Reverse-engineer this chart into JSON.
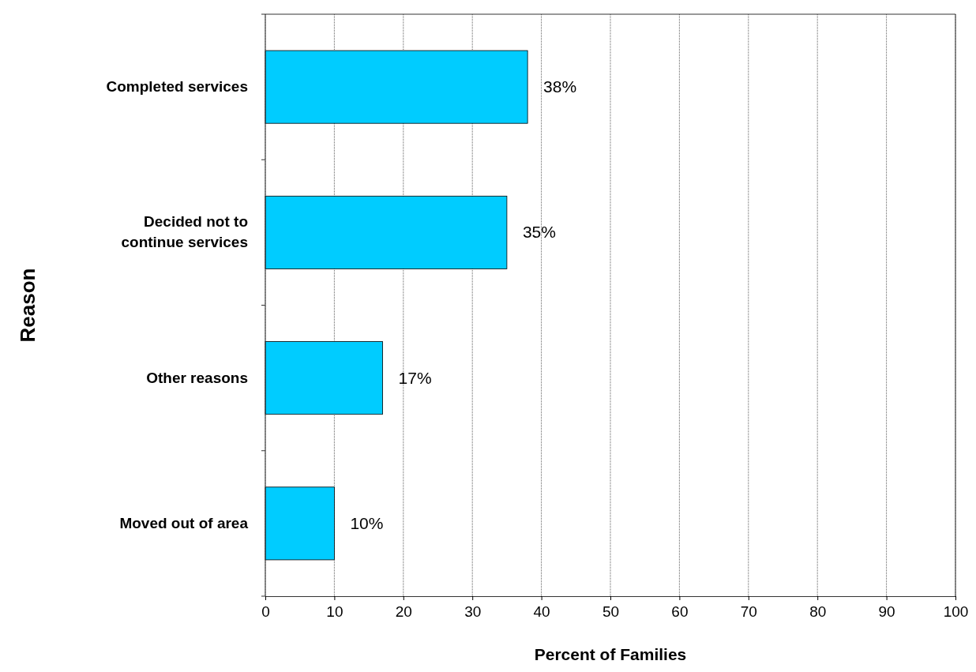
{
  "chart_data": {
    "type": "bar",
    "orientation": "horizontal",
    "xlabel": "Percent of Families",
    "ylabel": "Reason",
    "categories": [
      "Completed  services",
      "Decided not to\ncontinue services",
      "Other  reasons",
      "Moved out of area"
    ],
    "values": [
      38,
      35,
      17,
      10
    ],
    "value_labels": [
      "38%",
      "35%",
      "17%",
      "10%"
    ],
    "color": "#00ccff",
    "xlim": [
      0,
      100
    ],
    "xticks": [
      0,
      10,
      20,
      30,
      40,
      50,
      60,
      70,
      80,
      90,
      100
    ],
    "grid": "x"
  }
}
